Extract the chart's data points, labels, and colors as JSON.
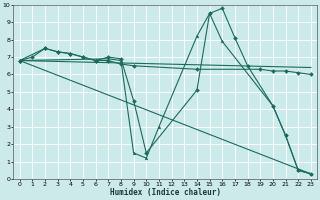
{
  "xlabel": "Humidex (Indice chaleur)",
  "bg_color": "#cceaea",
  "grid_color": "#ffffff",
  "line_color": "#1a6b5a",
  "xlim": [
    -0.5,
    23.5
  ],
  "ylim": [
    0,
    10
  ],
  "xticks": [
    0,
    1,
    2,
    3,
    4,
    5,
    6,
    7,
    8,
    9,
    10,
    11,
    12,
    13,
    14,
    15,
    16,
    17,
    18,
    19,
    20,
    21,
    22,
    23
  ],
  "yticks": [
    0,
    1,
    2,
    3,
    4,
    5,
    6,
    7,
    8,
    9,
    10
  ],
  "series": [
    {
      "x": [
        0,
        1,
        2,
        3,
        4,
        5,
        6,
        7,
        8,
        9,
        10,
        14,
        15,
        16,
        17,
        18,
        20,
        21,
        22,
        23
      ],
      "y": [
        6.8,
        7.0,
        7.5,
        7.3,
        7.2,
        7.0,
        6.8,
        7.0,
        6.9,
        4.5,
        1.5,
        5.1,
        9.5,
        9.8,
        8.1,
        6.5,
        4.2,
        2.5,
        0.5,
        0.3
      ],
      "marker": "D",
      "markersize": 2.0,
      "linewidth": 0.8
    },
    {
      "x": [
        0,
        23
      ],
      "y": [
        6.8,
        6.4
      ],
      "marker": null,
      "markersize": 0,
      "linewidth": 0.8
    },
    {
      "x": [
        0,
        2,
        3,
        4,
        5,
        6,
        7,
        8,
        9,
        14,
        19,
        20,
        21,
        22,
        23
      ],
      "y": [
        6.8,
        7.5,
        7.3,
        7.2,
        7.0,
        6.8,
        6.8,
        6.6,
        6.5,
        6.3,
        6.3,
        6.2,
        6.2,
        6.1,
        6.0
      ],
      "marker": "D",
      "markersize": 2.0,
      "linewidth": 0.8
    },
    {
      "x": [
        0,
        23
      ],
      "y": [
        6.8,
        0.3
      ],
      "marker": null,
      "markersize": 0,
      "linewidth": 0.8
    },
    {
      "x": [
        0,
        7,
        8,
        9,
        10,
        11,
        14,
        15,
        16,
        20,
        21,
        22,
        23
      ],
      "y": [
        6.8,
        6.9,
        6.8,
        1.5,
        1.2,
        3.0,
        8.2,
        9.5,
        7.9,
        4.2,
        2.5,
        0.5,
        0.3
      ],
      "marker": "^",
      "markersize": 2.0,
      "linewidth": 0.8
    }
  ]
}
